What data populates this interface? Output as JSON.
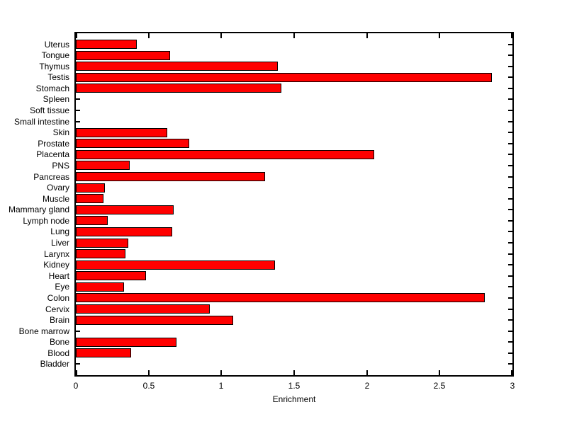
{
  "chart_data": {
    "type": "bar",
    "orientation": "horizontal",
    "title": "",
    "xlabel": "Enrichment",
    "ylabel": "",
    "xlim": [
      0,
      3
    ],
    "xticks": [
      0,
      0.5,
      1,
      1.5,
      2,
      2.5,
      3
    ],
    "xtick_labels": [
      "0",
      "0.5",
      "1",
      "1.5",
      "2",
      "2.5",
      "3"
    ],
    "grid": false,
    "legend": "none",
    "bar_color": "#ff0000",
    "bar_border_color": "#000000",
    "background_color": "#ffffff",
    "categories": [
      "Uterus",
      "Tongue",
      "Thymus",
      "Testis",
      "Stomach",
      "Spleen",
      "Soft tissue",
      "Small intestine",
      "Skin",
      "Prostate",
      "Placenta",
      "PNS",
      "Pancreas",
      "Ovary",
      "Muscle",
      "Mammary gland",
      "Lymph node",
      "Lung",
      "Liver",
      "Larynx",
      "Kidney",
      "Heart",
      "Eye",
      "Colon",
      "Cervix",
      "Brain",
      "Bone marrow",
      "Bone",
      "Blood",
      "Bladder"
    ],
    "values": [
      0.42,
      0.65,
      1.39,
      2.86,
      1.41,
      0,
      0,
      0,
      0.63,
      0.78,
      2.05,
      0.37,
      1.3,
      0.2,
      0.19,
      0.67,
      0.22,
      0.66,
      0.36,
      0.34,
      1.37,
      0.48,
      0.33,
      2.81,
      0.92,
      1.08,
      0,
      0.69,
      0.38,
      0
    ],
    "category_order_note": "top to bottom"
  }
}
